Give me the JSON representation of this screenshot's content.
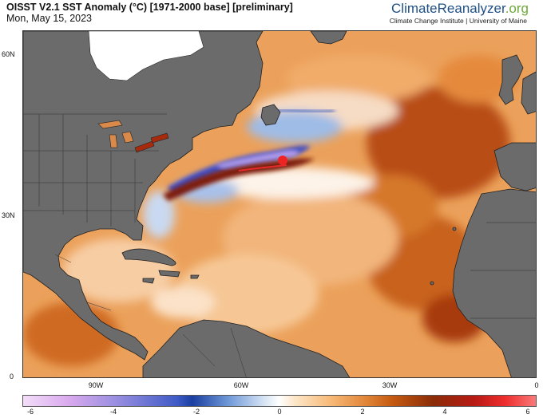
{
  "header": {
    "title": "OISST V2.1 SST Anomaly (°C) [1971-2000 base] [preliminary]",
    "date": "Mon, May 15, 2023",
    "brand_main": "ClimateReanalyzer",
    "brand_suffix": ".org",
    "credit": "Climate Change Institute | University of Maine"
  },
  "axes": {
    "lat_labels": [
      "60N",
      "30N",
      "0"
    ],
    "lon_labels": [
      "90W",
      "60W",
      "30W",
      "0"
    ]
  },
  "colorbar": {
    "ticks": [
      "-6",
      "-4",
      "-2",
      "0",
      "2",
      "4",
      "6"
    ]
  },
  "colors": {
    "land": "#6b6b6b",
    "ice": "#ffffff",
    "warm": "#e08b3f",
    "strong_warm": "#a13d0b",
    "cold": "#3a4fc0",
    "extreme_hot": "#e01515"
  }
}
